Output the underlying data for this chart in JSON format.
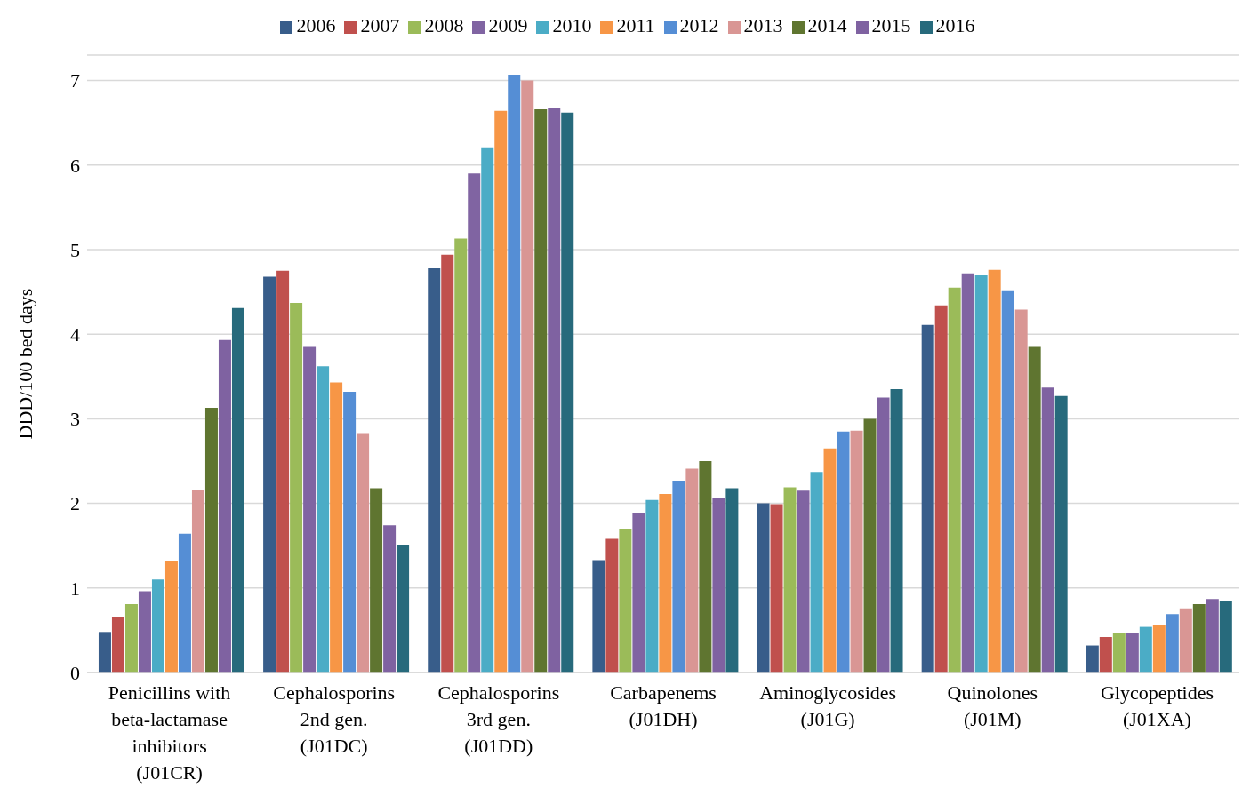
{
  "chart_data": {
    "type": "bar",
    "ylabel": "DDD/100 bed days",
    "categories": [
      "Penicillins with beta-lactamase inhibitors (J01CR)",
      "Cephalosporins 2nd gen. (J01DC)",
      "Cephalosporins 3rd gen. (J01DD)",
      "Carbapenems (J01DH)",
      "Aminoglycosides (J01G)",
      "Quinolones (J01M)",
      "Glycopeptides (J01XA)"
    ],
    "series": [
      {
        "name": "2006",
        "color": "#385d8a",
        "values": [
          0.48,
          4.68,
          4.78,
          1.33,
          2.0,
          4.11,
          0.32
        ]
      },
      {
        "name": "2007",
        "color": "#c0504d",
        "values": [
          0.66,
          4.75,
          4.94,
          1.58,
          1.99,
          4.34,
          0.42
        ]
      },
      {
        "name": "2008",
        "color": "#9bbb59",
        "values": [
          0.81,
          4.37,
          5.13,
          1.7,
          2.19,
          4.55,
          0.47
        ]
      },
      {
        "name": "2009",
        "color": "#8064a2",
        "values": [
          0.96,
          3.85,
          5.9,
          1.89,
          2.15,
          4.72,
          0.47
        ]
      },
      {
        "name": "2010",
        "color": "#4bacc6",
        "values": [
          1.1,
          3.62,
          6.2,
          2.04,
          2.37,
          4.7,
          0.54
        ]
      },
      {
        "name": "2011",
        "color": "#f79646",
        "values": [
          1.32,
          3.43,
          6.64,
          2.11,
          2.65,
          4.76,
          0.56
        ]
      },
      {
        "name": "2012",
        "color": "#558ed5",
        "values": [
          1.64,
          3.32,
          7.07,
          2.27,
          2.85,
          4.52,
          0.69
        ]
      },
      {
        "name": "2013",
        "color": "#d99694",
        "values": [
          2.16,
          2.83,
          7.0,
          2.41,
          2.86,
          4.29,
          0.76
        ]
      },
      {
        "name": "2014",
        "color": "#5f7530",
        "values": [
          3.13,
          2.18,
          6.66,
          2.5,
          3.0,
          3.85,
          0.81
        ]
      },
      {
        "name": "2015",
        "color": "#7f62a1",
        "values": [
          3.93,
          1.74,
          6.67,
          2.07,
          3.25,
          3.37,
          0.87
        ]
      },
      {
        "name": "2016",
        "color": "#276a7c",
        "values": [
          4.31,
          1.51,
          6.62,
          2.18,
          3.35,
          3.27,
          0.85
        ]
      }
    ],
    "ylim": [
      0,
      7.3
    ],
    "yticks": [
      0,
      1,
      2,
      3,
      4,
      5,
      6,
      7
    ],
    "grid": "y",
    "legend": "top"
  }
}
